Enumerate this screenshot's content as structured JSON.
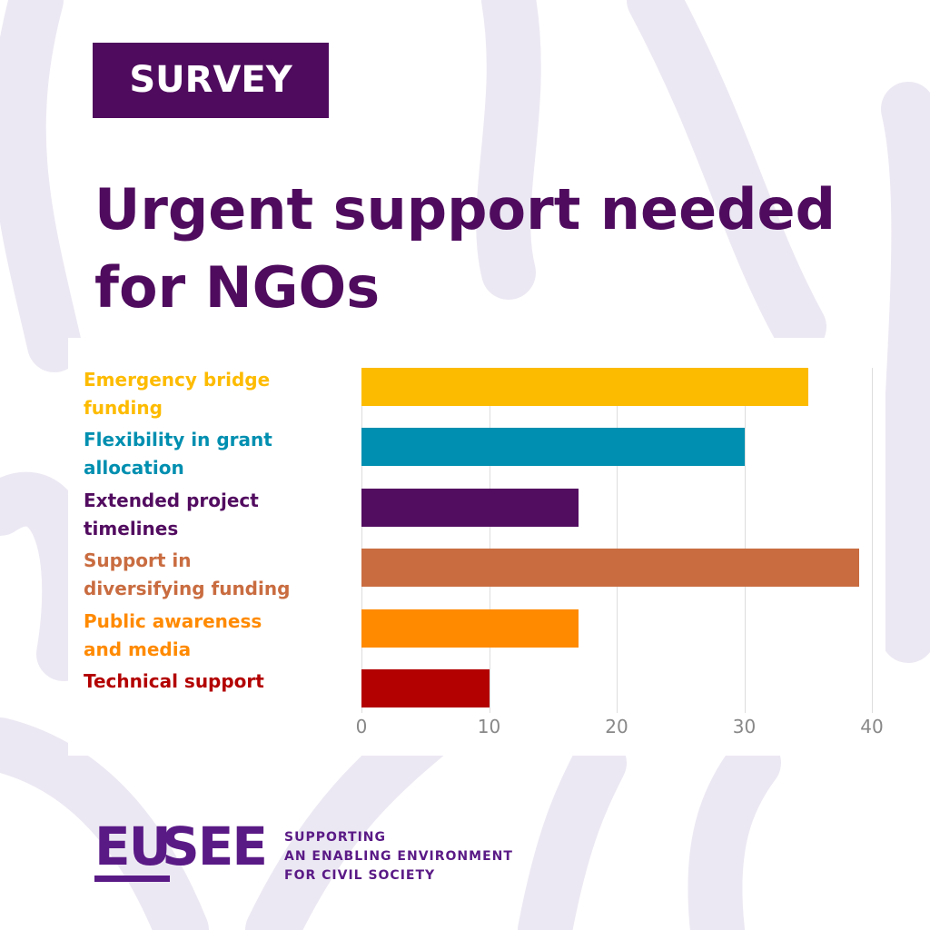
{
  "badge": "SURVEY",
  "chart_data": {
    "type": "bar",
    "orientation": "horizontal",
    "title": "Urgent support needed for NGOs",
    "categories": [
      "Emergency bridge funding",
      "Flexibility in grant allocation",
      "Extended project timelines",
      "Support in diversifying funding",
      "Public awareness and media",
      "Technical support"
    ],
    "values": [
      35,
      30,
      17,
      39,
      17,
      10
    ],
    "colors": [
      "#fdbb00",
      "#008fb0",
      "#520c60",
      "#c96c40",
      "#ff8a00",
      "#b30000"
    ],
    "xlim": [
      0,
      40
    ],
    "xticks": [
      0,
      10,
      20,
      30,
      40
    ],
    "grid": true
  },
  "logo": {
    "parts": [
      "EU",
      "SEE"
    ],
    "tagline": [
      "SUPPORTING",
      "AN ENABLING ENVIRONMENT",
      "FOR CIVIL SOCIETY"
    ]
  }
}
